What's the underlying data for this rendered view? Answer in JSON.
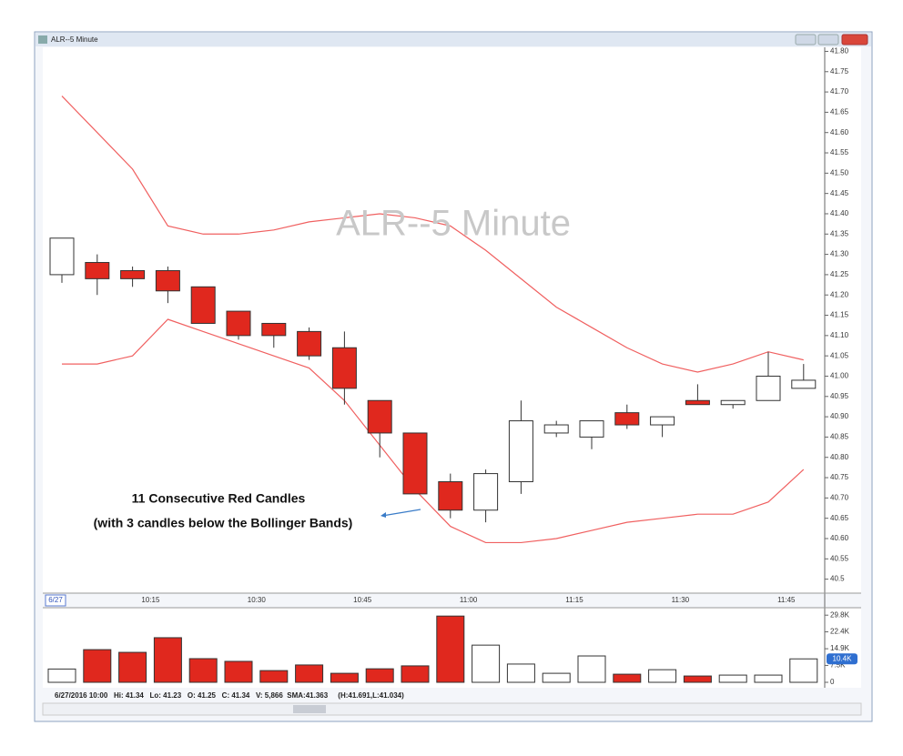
{
  "window": {
    "title": "ALR--5 Minute"
  },
  "status_bar": "6/27/2016 10:00   Hi: 41.34   Lo: 41.23   O: 41.25   C: 41.34   V: 5,866  SMA:41.363     (H:41.691,L:41.034)",
  "chart_data": [
    {
      "type": "candlestick",
      "watermark": "ALR--5 Minute",
      "date_label": "6/27",
      "annotations": [
        "11 Consecutive Red Candles",
        "(with 3 candles below the Bollinger Bands)"
      ],
      "categories": [
        null,
        null,
        null,
        "10:15",
        null,
        null,
        "10:30",
        null,
        null,
        "10:45",
        null,
        null,
        "11:00",
        null,
        null,
        "11:15",
        null,
        null,
        "11:30",
        null,
        null,
        "11:45"
      ],
      "open": [
        41.25,
        41.28,
        41.26,
        41.26,
        41.22,
        41.16,
        41.13,
        41.11,
        41.07,
        40.94,
        40.86,
        40.74,
        40.67,
        40.74,
        40.86,
        40.85,
        40.91,
        40.88,
        40.94,
        40.93,
        40.94,
        40.97
      ],
      "high": [
        41.34,
        41.3,
        41.27,
        41.27,
        41.22,
        41.16,
        41.13,
        41.12,
        41.11,
        40.94,
        40.86,
        40.76,
        40.77,
        40.94,
        40.89,
        40.89,
        40.93,
        40.9,
        40.98,
        40.94,
        41.06,
        41.03
      ],
      "low": [
        41.23,
        41.2,
        41.22,
        41.18,
        41.13,
        41.09,
        41.07,
        41.04,
        40.93,
        40.8,
        40.71,
        40.65,
        40.64,
        40.71,
        40.85,
        40.82,
        40.87,
        40.85,
        40.93,
        40.92,
        40.94,
        40.97
      ],
      "close": [
        41.34,
        41.24,
        41.24,
        41.21,
        41.13,
        41.1,
        41.1,
        41.05,
        40.97,
        40.86,
        40.71,
        40.67,
        40.76,
        40.89,
        40.88,
        40.89,
        40.88,
        40.9,
        40.93,
        40.94,
        41.0,
        40.99
      ],
      "up_color": "#ffffff",
      "down_color": "#e0281e",
      "bands": [
        {
          "color": "#f06060",
          "values": [
            41.69,
            41.6,
            41.51,
            41.37,
            41.35,
            41.35,
            41.36,
            41.38,
            41.39,
            41.4,
            41.39,
            41.37,
            41.31,
            41.24,
            41.17,
            41.12,
            41.07,
            41.03,
            41.01,
            41.03,
            41.06,
            41.04
          ]
        },
        {
          "color": "#f06060",
          "values": [
            41.03,
            41.03,
            41.05,
            41.14,
            41.11,
            41.08,
            41.05,
            41.02,
            40.94,
            40.83,
            40.72,
            40.63,
            40.59,
            40.59,
            40.6,
            40.62,
            40.64,
            40.65,
            40.66,
            40.66,
            40.69,
            40.77
          ]
        }
      ],
      "ylim": [
        40.47,
        41.81
      ],
      "yticks": [
        {
          "value": 41.8,
          "label": "41.80"
        },
        41.75,
        {
          "value": 41.7,
          "label": "41.70"
        },
        41.65,
        {
          "value": 41.6,
          "label": "41.60"
        },
        41.55,
        {
          "value": 41.5,
          "label": "41.50"
        },
        41.45,
        {
          "value": 41.4,
          "label": "41.40"
        },
        41.35,
        {
          "value": 41.3,
          "label": "41.30"
        },
        41.25,
        {
          "value": 41.2,
          "label": "41.20"
        },
        41.15,
        {
          "value": 41.1,
          "label": "41.10"
        },
        41.05,
        {
          "value": 41,
          "label": "41.00"
        },
        40.95,
        {
          "value": 40.9,
          "label": "40.90"
        },
        40.85,
        {
          "value": 40.8,
          "label": "40.80"
        },
        40.75,
        {
          "value": 40.7,
          "label": "40.70"
        },
        40.65,
        {
          "value": 40.6,
          "label": "40.60"
        },
        40.55,
        40.5
      ]
    },
    {
      "type": "bar",
      "values": [
        5.9,
        14.5,
        13.3,
        19.8,
        10.5,
        9.3,
        5.2,
        7.7,
        4.0,
        6.0,
        7.3,
        29.4,
        16.5,
        8.1,
        4.0,
        11.7,
        3.6,
        5.6,
        2.8,
        3.2,
        3.2,
        10.4
      ],
      "value_labels": [
        null,
        null,
        null,
        null,
        null,
        null,
        null,
        null,
        null,
        null,
        null,
        null,
        null,
        null,
        null,
        null,
        null,
        null,
        null,
        null,
        null,
        "10.4K"
      ],
      "ylim": [
        0,
        32.3
      ],
      "yticks": [
        {
          "value": 29.8,
          "label": "29.8K"
        },
        {
          "value": 22.4,
          "label": "22.4K"
        },
        {
          "value": 14.9,
          "label": "14.9K"
        },
        {
          "value": 7.5,
          "label": "7.5K"
        },
        0
      ]
    }
  ]
}
